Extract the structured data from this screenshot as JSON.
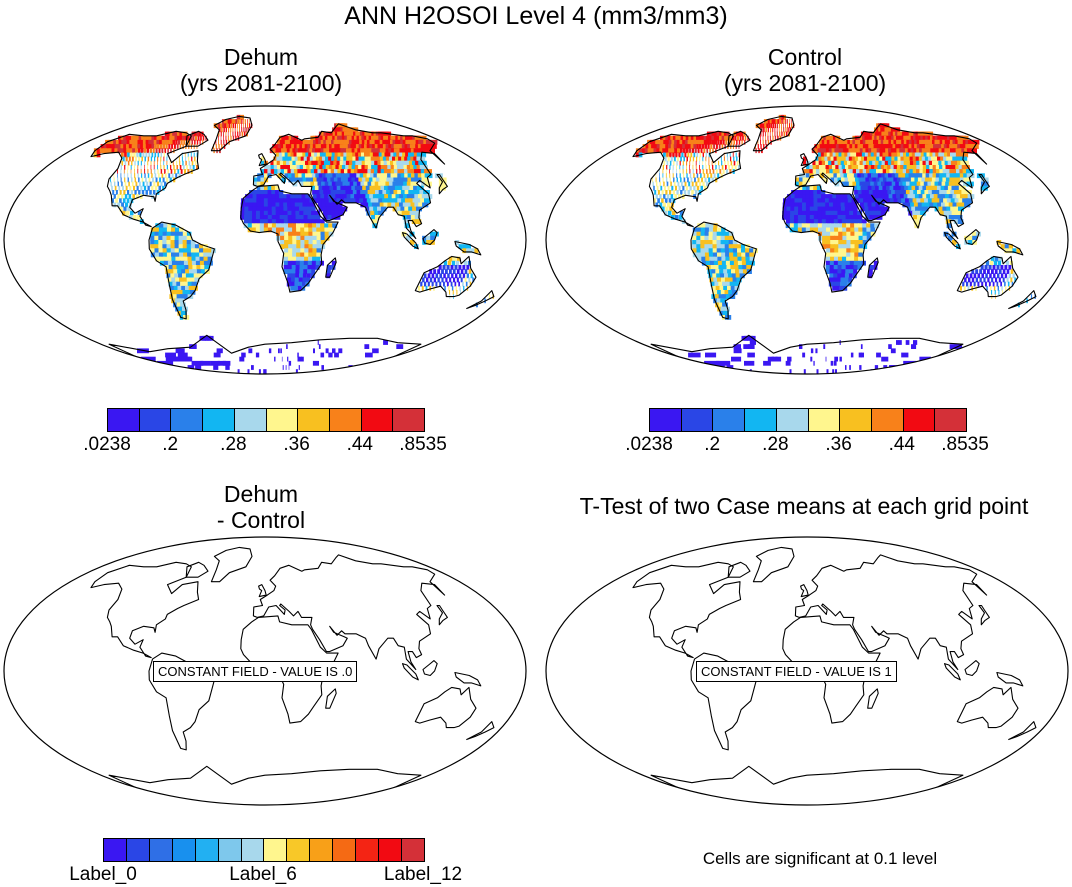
{
  "title": "ANN H2OSOI Level 4 (mm3/mm3)",
  "panels": [
    {
      "title_line1": "Dehum",
      "title_line2": "(yrs 2081-2100)",
      "type": "filled"
    },
    {
      "title_line1": "Control",
      "title_line2": "(yrs 2081-2100)",
      "type": "filled"
    },
    {
      "title_line1": "Dehum",
      "title_line2": "- Control",
      "type": "constant",
      "constant_label": "CONSTANT FIELD - VALUE IS .0"
    },
    {
      "title_line1": "T-Test of two Case means at each grid point",
      "title_line2": "",
      "type": "constant",
      "constant_label": "CONSTANT FIELD - VALUE IS 1"
    }
  ],
  "colorbar_top": {
    "colors": [
      "#3a17f2",
      "#2a46e6",
      "#2a80ea",
      "#12b6f2",
      "#a8d8ec",
      "#fff68e",
      "#f8c020",
      "#f8811a",
      "#f20a12",
      "#d43038"
    ],
    "labels": [
      ".0238",
      ".2",
      ".28",
      ".36",
      ".44",
      ".8535"
    ]
  },
  "colorbar_bottom": {
    "colors": [
      "#3a17f2",
      "#2a46e6",
      "#2f6fe6",
      "#1890ee",
      "#22b0f2",
      "#7ec8ec",
      "#a8d8ec",
      "#fff68e",
      "#f8c828",
      "#f8a018",
      "#f56a14",
      "#f42414",
      "#f20a12",
      "#d43038"
    ],
    "labels": [
      "Label_0",
      "Label_6",
      "Label_12"
    ]
  },
  "significance_note": "Cells are significant at 0.1 level",
  "chart_data": {
    "type": "heatmap",
    "variable": "H2OSOI Level 4",
    "units": "mm3/mm3",
    "levels": [
      0.0238,
      0.2,
      0.28,
      0.36,
      0.44,
      0.8535
    ],
    "difference_constant_value": 0.0,
    "ttest_constant_value": 1
  }
}
